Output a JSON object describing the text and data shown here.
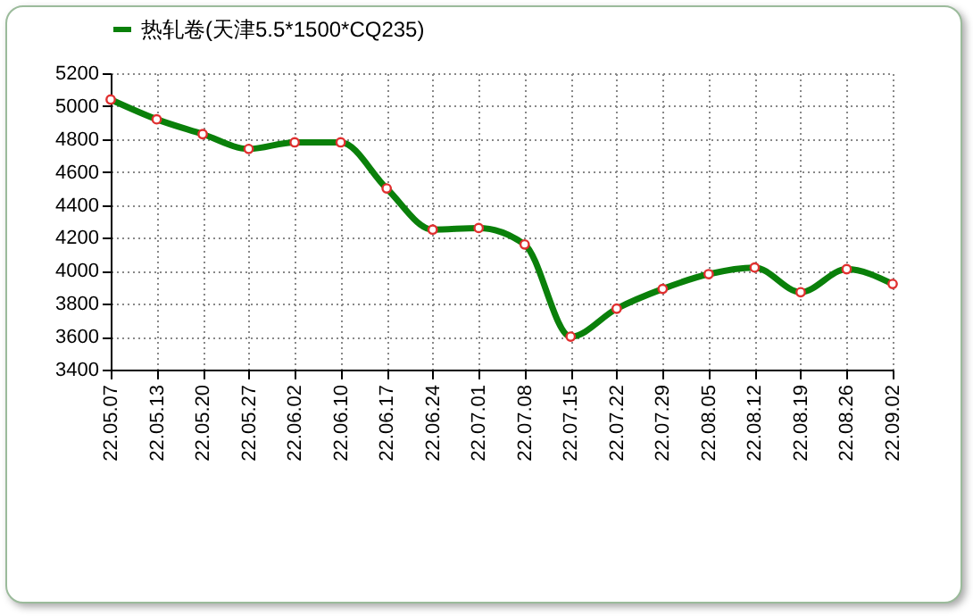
{
  "chart_data": {
    "type": "line",
    "categories": [
      "22.05.07",
      "22.05.13",
      "22.05.20",
      "22.05.27",
      "22.06.02",
      "22.06.10",
      "22.06.17",
      "22.06.24",
      "22.07.01",
      "22.07.08",
      "22.07.15",
      "22.07.22",
      "22.07.29",
      "22.08.05",
      "22.08.12",
      "22.08.19",
      "22.08.26",
      "22.09.02"
    ],
    "series": [
      {
        "name": "热轧卷(天津5.5*1500*CQ235)",
        "color": "#0a800a",
        "values": [
          5040,
          4920,
          4830,
          4740,
          4780,
          4780,
          4500,
          4250,
          4260,
          4160,
          3600,
          3770,
          3890,
          3980,
          4020,
          3870,
          4010,
          3920
        ]
      }
    ],
    "ylim": [
      3400,
      5200
    ],
    "yticks": [
      3400,
      3600,
      3800,
      4000,
      4200,
      4400,
      4600,
      4800,
      5000,
      5200
    ],
    "grid": true,
    "legend": "top",
    "marker": "circle",
    "line_style": "solid"
  }
}
